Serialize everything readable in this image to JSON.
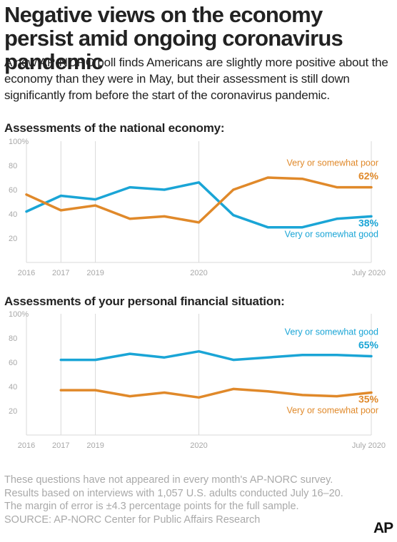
{
  "title": "Negative views on the economy persist amid ongoing coronavirus pandemic",
  "intro": "A new AP-NORC poll finds Americans are slightly more positive about the economy than they were in May, but their assessment is still down significantly from before the start of the coronavirus pandemic.",
  "colors": {
    "good": "#1aa5d6",
    "poor": "#e0892a",
    "grid": "#d9d9d9",
    "axis": "#a8a8a8"
  },
  "chart_data": [
    {
      "type": "line",
      "title": "Assessments of the national economy:",
      "y_ticks": [
        "100%",
        "80",
        "60",
        "40",
        "20"
      ],
      "y_tick_values": [
        100,
        80,
        60,
        40,
        20
      ],
      "ylim": [
        0,
        100
      ],
      "x_tick_labels": [
        "2016",
        "2017",
        "2019",
        "2020",
        "July 2020"
      ],
      "x_tick_index": [
        0,
        2,
        4,
        10,
        20
      ],
      "x": [
        0,
        2,
        4,
        6,
        8,
        10,
        12,
        14,
        16,
        18,
        20
      ],
      "series": [
        {
          "key": "good",
          "name": "Very or somewhat good",
          "value_label": "38%",
          "values": [
            42,
            55,
            52,
            62,
            60,
            66,
            39,
            29,
            29,
            36,
            38
          ]
        },
        {
          "key": "poor",
          "name": "Very or somewhat poor",
          "value_label": "62%",
          "values": [
            56,
            43,
            47,
            36,
            38,
            33,
            60,
            70,
            69,
            62,
            62
          ]
        }
      ]
    },
    {
      "type": "line",
      "title": "Assessments of your personal financial situation:",
      "y_ticks": [
        "100%",
        "80",
        "60",
        "40",
        "20"
      ],
      "y_tick_values": [
        100,
        80,
        60,
        40,
        20
      ],
      "ylim": [
        0,
        100
      ],
      "x_tick_labels": [
        "2016",
        "2017",
        "2019",
        "2020",
        "July 2020"
      ],
      "x_tick_index": [
        0,
        2,
        4,
        10,
        20
      ],
      "x": [
        2,
        4,
        6,
        8,
        10,
        12,
        14,
        16,
        18,
        20
      ],
      "series": [
        {
          "key": "good",
          "name": "Very or somewhat good",
          "value_label": "65%",
          "values": [
            62,
            62,
            67,
            64,
            69,
            62,
            64,
            66,
            66,
            65
          ]
        },
        {
          "key": "poor",
          "name": "Very or somewhat poor",
          "value_label": "35%",
          "values": [
            37,
            37,
            32,
            35,
            31,
            38,
            36,
            33,
            32,
            35
          ]
        }
      ]
    }
  ],
  "footer": {
    "note1": "These questions have not appeared in every month's AP-NORC survey.",
    "note2": "Results based on interviews with 1,057 U.S. adults conducted July 16–20.",
    "note3": "The margin of error is ±4.3 percentage points for the full sample.",
    "source": "SOURCE: AP-NORC Center for Public Affairs Research"
  },
  "logo": "AP"
}
